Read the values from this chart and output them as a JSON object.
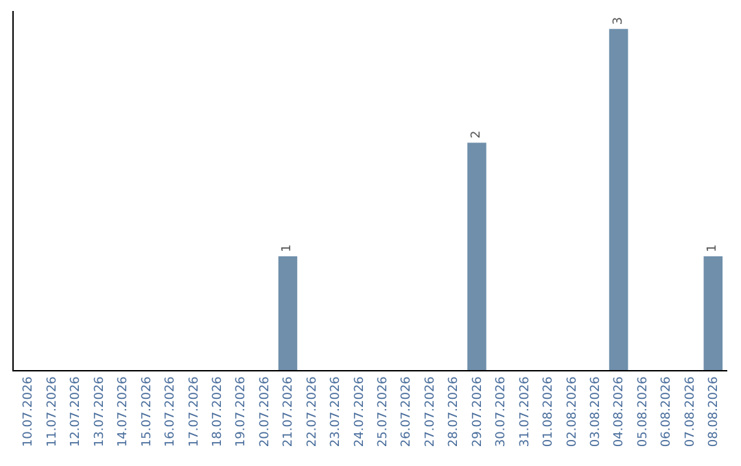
{
  "chart_data": {
    "type": "bar",
    "categories": [
      "10.07.2026",
      "11.07.2026",
      "12.07.2026",
      "13.07.2026",
      "14.07.2026",
      "15.07.2026",
      "16.07.2026",
      "17.07.2026",
      "18.07.2026",
      "19.07.2026",
      "20.07.2026",
      "21.07.2026",
      "22.07.2026",
      "23.07.2026",
      "24.07.2026",
      "25.07.2026",
      "26.07.2026",
      "27.07.2026",
      "28.07.2026",
      "29.07.2026",
      "30.07.2026",
      "31.07.2026",
      "01.08.2026",
      "02.08.2026",
      "03.08.2026",
      "04.08.2026",
      "05.08.2026",
      "06.08.2026",
      "07.08.2026",
      "08.08.2026"
    ],
    "values": [
      0,
      0,
      0,
      0,
      0,
      0,
      0,
      0,
      0,
      0,
      0,
      1,
      0,
      0,
      0,
      0,
      0,
      0,
      0,
      2,
      0,
      0,
      0,
      0,
      0,
      3,
      0,
      0,
      0,
      1
    ],
    "value_labels": [
      null,
      null,
      null,
      null,
      null,
      null,
      null,
      null,
      null,
      null,
      null,
      "1",
      null,
      null,
      null,
      null,
      null,
      null,
      null,
      "2",
      null,
      null,
      null,
      null,
      null,
      "3",
      null,
      null,
      null,
      "1"
    ],
    "color": "#6f8fab",
    "legend": false
  }
}
